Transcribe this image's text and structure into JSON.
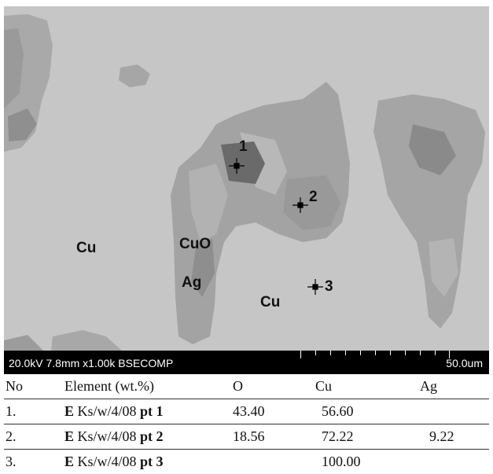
{
  "micrograph": {
    "phase_labels": {
      "cu_left": "Cu",
      "cuo": "CuO",
      "ag": "Ag",
      "cu_center": "Cu"
    },
    "point_labels": [
      "1",
      "2",
      "3"
    ]
  },
  "scale_bar": {
    "parameters": "20.0kV 7.8mm x1.00k BSECOMP",
    "scale": "50.0um"
  },
  "table": {
    "headers": [
      "No",
      "Element (wt.%)",
      "O",
      "Cu",
      "Ag"
    ],
    "rows": [
      {
        "no": "1.",
        "prefix": "E",
        "sample": " Ks/w/4/08 ",
        "point": "pt 1",
        "O": "43.40",
        "Cu": "56.60",
        "Ag": ""
      },
      {
        "no": "2.",
        "prefix": "E",
        "sample": " Ks/w/4/08 ",
        "point": "pt 2",
        "O": "18.56",
        "Cu": "72.22",
        "Ag": "9.22"
      },
      {
        "no": "3.",
        "prefix": "E",
        "sample": " Ks/w/4/08 ",
        "point": "pt 3",
        "O": "",
        "Cu": "100.00",
        "Ag": ""
      }
    ]
  }
}
